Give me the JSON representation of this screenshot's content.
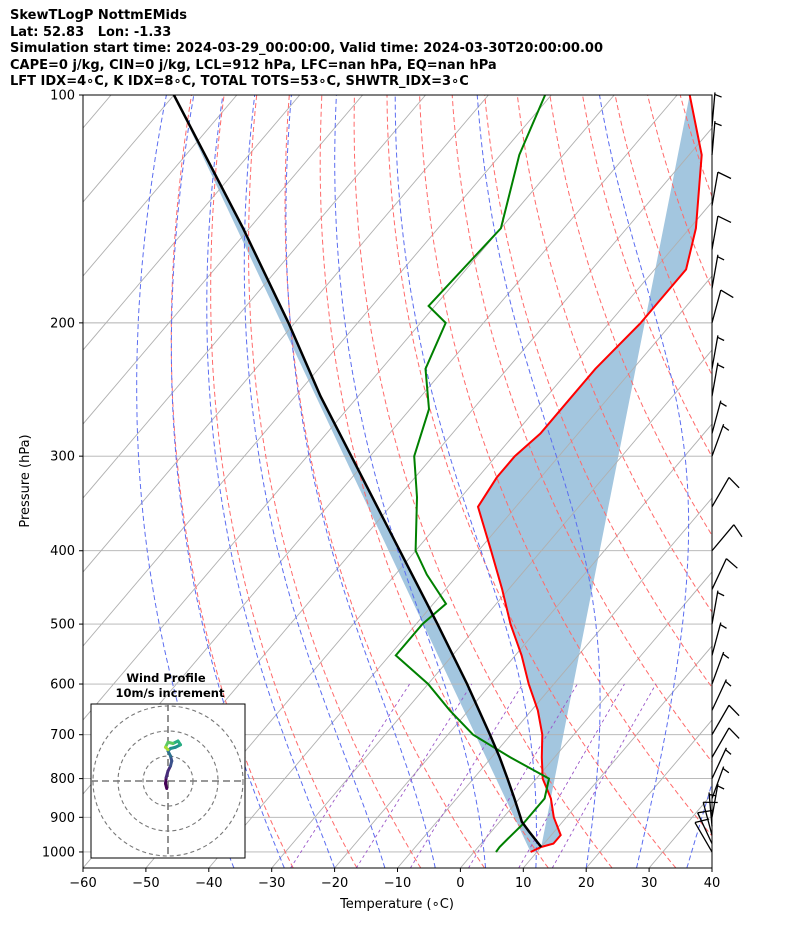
{
  "header_lines": [
    "SkewTLogP NottmEMids",
    "Lat: 52.83   Lon: -1.33",
    "Simulation start time: 2024-03-29_00:00:00, Valid time: 2024-03-30T20:00:00.00",
    "CAPE=0 j/kg, CIN=0 j/kg, LCL=912 hPa, LFC=nan hPa, EQ=nan hPa",
    "LFT IDX=4∘C, K IDX=8∘C, TOTAL TOTS=53∘C, SHWTR_IDX=3∘C"
  ],
  "colors": {
    "temperature": "#ff0000",
    "dewpoint": "#008000",
    "parcel": "#000000",
    "shading": "#a3c6df",
    "dry_adiabats": "#ff6a6a",
    "moist_adiabats": "#5b6df0",
    "mixing_ratio": "#9a55c8",
    "isotherms": "#b0b0b0",
    "pressure_grid": "#b0b0b0"
  },
  "chart_data": {
    "type": "skew-t log-p",
    "xlabel": "Temperature ($^\\circ$C)",
    "ylabel": "Pressure (hPa)",
    "xlim": [
      -60,
      40
    ],
    "ylim": [
      1050,
      100
    ],
    "x_ticks": [
      -60,
      -50,
      -40,
      -30,
      -20,
      -10,
      0,
      10,
      20,
      30,
      40
    ],
    "y_ticks": [
      1000,
      900,
      800,
      700,
      600,
      500,
      400,
      300,
      200,
      100
    ],
    "grid": true,
    "temperature": [
      [
        100,
        -68
      ],
      [
        120,
        -58
      ],
      [
        150,
        -49
      ],
      [
        170,
        -45
      ],
      [
        190,
        -45
      ],
      [
        200,
        -45
      ],
      [
        230,
        -46
      ],
      [
        250,
        -46
      ],
      [
        280,
        -46
      ],
      [
        300,
        -47
      ],
      [
        320,
        -47
      ],
      [
        350,
        -46
      ],
      [
        400,
        -38
      ],
      [
        450,
        -31
      ],
      [
        500,
        -25
      ],
      [
        550,
        -19
      ],
      [
        600,
        -14
      ],
      [
        650,
        -9
      ],
      [
        700,
        -5
      ],
      [
        750,
        -2
      ],
      [
        800,
        1
      ],
      [
        850,
        5
      ],
      [
        900,
        8
      ],
      [
        950,
        11.5
      ],
      [
        975,
        11.5
      ],
      [
        985,
        10
      ],
      [
        1000,
        9
      ]
    ],
    "dewpoint": [
      [
        100,
        -91
      ],
      [
        120,
        -87
      ],
      [
        150,
        -80
      ],
      [
        190,
        -81
      ],
      [
        200,
        -76
      ],
      [
        230,
        -73
      ],
      [
        260,
        -67
      ],
      [
        300,
        -63
      ],
      [
        340,
        -57
      ],
      [
        400,
        -50
      ],
      [
        430,
        -45
      ],
      [
        470,
        -38
      ],
      [
        500,
        -39
      ],
      [
        550,
        -39
      ],
      [
        600,
        -30
      ],
      [
        650,
        -23
      ],
      [
        700,
        -16
      ],
      [
        750,
        -7
      ],
      [
        800,
        2
      ],
      [
        850,
        4
      ],
      [
        880,
        4
      ],
      [
        920,
        4
      ],
      [
        960,
        3.6
      ],
      [
        985,
        3.4
      ],
      [
        1000,
        3.5
      ]
    ],
    "parcel": [
      [
        985,
        10
      ],
      [
        940,
        6
      ],
      [
        912,
        3.5
      ],
      [
        900,
        2.7
      ],
      [
        850,
        -0.8
      ],
      [
        800,
        -4.6
      ],
      [
        750,
        -8.7
      ],
      [
        700,
        -13.3
      ],
      [
        600,
        -23.8
      ],
      [
        500,
        -36.6
      ],
      [
        400,
        -52.5
      ],
      [
        300,
        -73
      ],
      [
        250,
        -86
      ],
      [
        200,
        -101
      ],
      [
        150,
        -121
      ],
      [
        100,
        -150
      ]
    ],
    "wind_barbs": [
      [
        1000,
        12,
        330
      ],
      [
        975,
        11,
        335
      ],
      [
        950,
        10,
        345
      ],
      [
        925,
        8,
        355
      ],
      [
        900,
        8,
        10
      ],
      [
        850,
        8,
        20
      ],
      [
        800,
        9,
        25
      ],
      [
        750,
        10,
        30
      ],
      [
        700,
        10,
        30
      ],
      [
        650,
        8,
        25
      ],
      [
        600,
        8,
        20
      ],
      [
        550,
        7,
        15
      ],
      [
        500,
        8,
        10
      ],
      [
        450,
        12,
        25
      ],
      [
        400,
        12,
        40
      ],
      [
        350,
        10,
        30
      ],
      [
        300,
        8,
        20
      ],
      [
        280,
        8,
        15
      ],
      [
        250,
        9,
        10
      ],
      [
        230,
        9,
        10
      ],
      [
        200,
        10,
        15
      ],
      [
        180,
        9,
        10
      ],
      [
        160,
        10,
        10
      ],
      [
        140,
        10,
        10
      ],
      [
        120,
        9,
        5
      ],
      [
        110,
        8,
        5
      ]
    ],
    "hodograph": {
      "title": "Wind Profile",
      "subtitle": "10m/s increment",
      "rings": [
        10,
        20,
        30
      ],
      "points": [
        [
          -0.5,
          -3
        ],
        [
          -1,
          -1
        ],
        [
          -0.7,
          1.5
        ],
        [
          0,
          4
        ],
        [
          1,
          6
        ],
        [
          1.5,
          8
        ],
        [
          1,
          10
        ],
        [
          0,
          12
        ],
        [
          1,
          13
        ],
        [
          3,
          13.5
        ],
        [
          5,
          14.5
        ],
        [
          4,
          16
        ],
        [
          2,
          15
        ],
        [
          0,
          15.5
        ],
        [
          -1,
          13.5
        ],
        [
          0,
          12.5
        ]
      ]
    }
  }
}
